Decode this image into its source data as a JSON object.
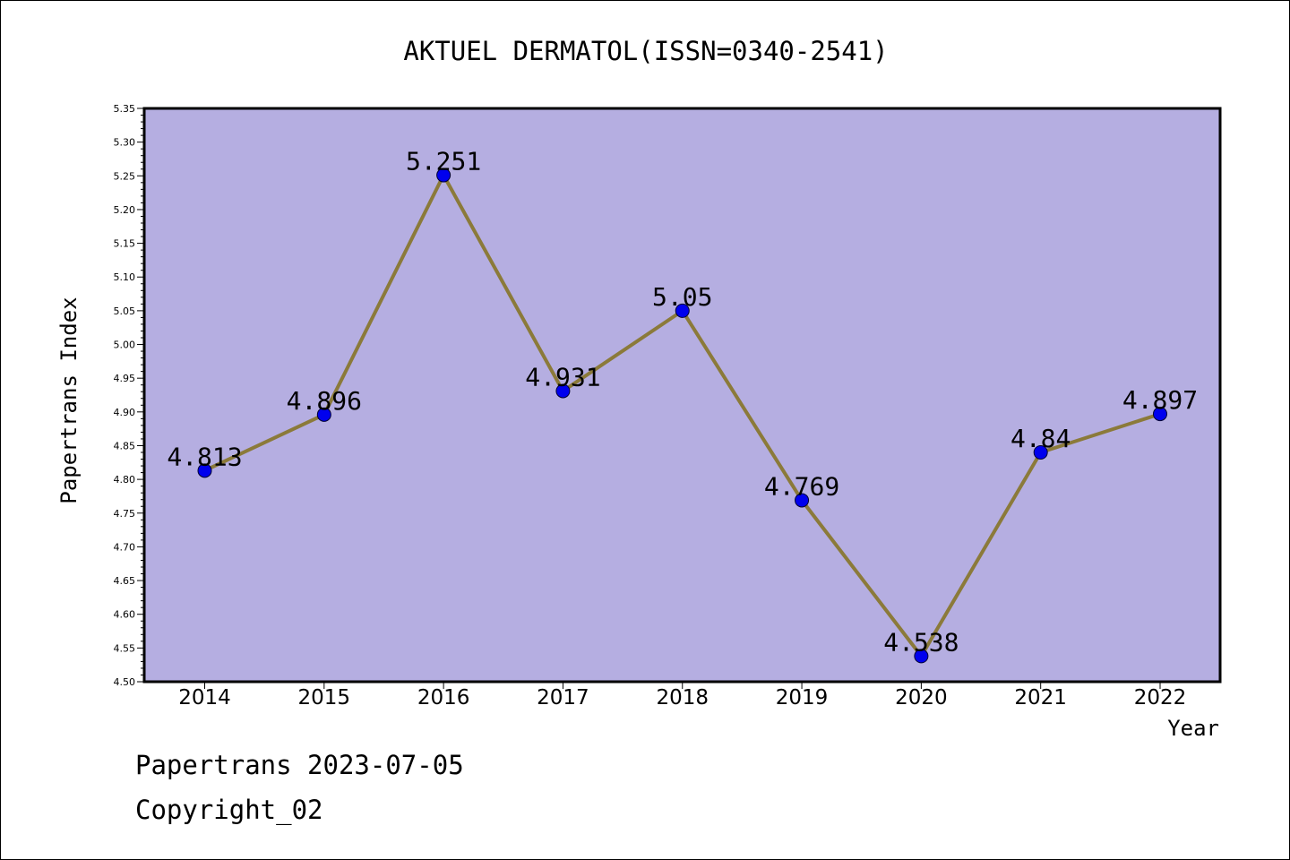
{
  "chart_data": {
    "type": "line",
    "title": "AKTUEL DERMATOL(ISSN=0340-2541)",
    "xlabel": "Year",
    "ylabel": "Papertrans Index",
    "categories": [
      "2014",
      "2015",
      "2016",
      "2017",
      "2018",
      "2019",
      "2020",
      "2021",
      "2022"
    ],
    "series": [
      {
        "values": [
          4.813,
          4.896,
          5.251,
          4.931,
          5.05,
          4.769,
          4.538,
          4.84,
          4.897
        ],
        "labels": [
          "4.813",
          "4.896",
          "5.251",
          "4.931",
          "5.05",
          "4.769",
          "4.538",
          "4.84",
          "4.897"
        ]
      }
    ],
    "ylim": [
      4.5,
      5.35
    ],
    "yticks": [
      "4.50",
      "4.55",
      "4.60",
      "4.65",
      "4.70",
      "4.75",
      "4.80",
      "4.85",
      "4.90",
      "4.95",
      "5.00",
      "5.05",
      "5.10",
      "5.15",
      "5.20",
      "5.25",
      "5.30",
      "5.35"
    ],
    "grid": false,
    "legend": "none",
    "colors": {
      "plot_background": "#b5aee1",
      "line": "#8b7a3a",
      "marker": "#0000ee"
    }
  },
  "footer": {
    "date_line": "Papertrans 2023-07-05",
    "copyright": "Copyright_02"
  }
}
